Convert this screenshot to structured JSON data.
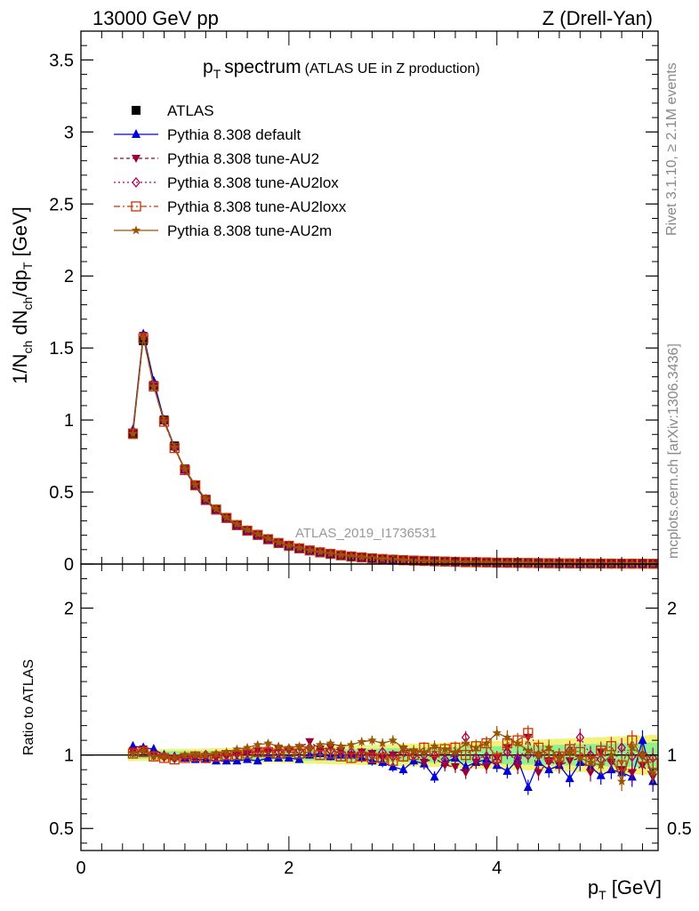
{
  "header": {
    "left": "13000 GeV pp",
    "right": "Z (Drell-Yan)"
  },
  "side_labels": {
    "rivet": "Rivet 3.1.10, ≥ 2.1M events",
    "mcplots": "mcplots.cern.ch [arXiv:1306.3436]"
  },
  "chart_data": {
    "type": "line",
    "title_main": "p",
    "title_sub": "T",
    "title_word": "spectrum",
    "title_note": "(ATLAS UE in Z production)",
    "watermark": "ATLAS_2019_I1736531",
    "ylabel": {
      "a": "1/N",
      "b": "ch",
      "c": " dN",
      "d": "ch",
      "e": "/dp",
      "f": "T",
      "g": " [GeV]"
    },
    "xlabel": {
      "a": "p",
      "b": "T",
      "c": " [GeV]"
    },
    "ratio_ylabel": "Ratio to ATLAS",
    "main_yticks": [
      "0",
      "0.5",
      "1",
      "1.5",
      "2",
      "2.5",
      "3",
      "3.5"
    ],
    "ratio_yticks": [
      "0.5",
      "1",
      "2"
    ],
    "xticks": [
      "0",
      "2",
      "4"
    ],
    "xlim": [
      0,
      5.55
    ],
    "main_ylim": [
      0,
      3.7
    ],
    "ratio_ylim": [
      0.35,
      2.3
    ],
    "x": [
      0.5,
      0.6,
      0.7,
      0.8,
      0.9,
      1.0,
      1.1,
      1.2,
      1.3,
      1.4,
      1.5,
      1.6,
      1.7,
      1.8,
      1.9,
      2.0,
      2.1,
      2.2,
      2.3,
      2.4,
      2.5,
      2.6,
      2.7,
      2.8,
      2.9,
      3.0,
      3.1,
      3.2,
      3.3,
      3.4,
      3.5,
      3.6,
      3.7,
      3.8,
      3.9,
      4.0,
      4.1,
      4.2,
      4.3,
      4.4,
      4.5,
      4.6,
      4.7,
      4.8,
      4.9,
      5.0,
      5.1,
      5.2,
      5.3,
      5.4,
      5.5
    ],
    "data": [
      0.9,
      1.55,
      1.24,
      1.0,
      0.82,
      0.66,
      0.55,
      0.45,
      0.38,
      0.32,
      0.27,
      0.23,
      0.2,
      0.17,
      0.145,
      0.125,
      0.108,
      0.093,
      0.081,
      0.07,
      0.061,
      0.053,
      0.046,
      0.04,
      0.035,
      0.031,
      0.027,
      0.024,
      0.021,
      0.019,
      0.017,
      0.015,
      0.013,
      0.012,
      0.011,
      0.0095,
      0.0085,
      0.0076,
      0.0068,
      0.0061,
      0.0055,
      0.0049,
      0.0044,
      0.004,
      0.0036,
      0.0032,
      0.0029,
      0.0026,
      0.0023,
      0.0021,
      0.0019
    ],
    "series": [
      {
        "name": "ATLAS",
        "color": "#000000",
        "marker": "square"
      },
      {
        "name": "Pythia 8.308 default",
        "color": "#0000dd",
        "marker": "triangle-up",
        "ratio": [
          1.06,
          1.05,
          1.04,
          1.0,
          0.99,
          0.98,
          0.97,
          0.97,
          0.96,
          0.96,
          0.96,
          0.97,
          0.96,
          0.98,
          0.98,
          0.98,
          0.97,
          1.0,
          1.01,
          0.99,
          1.0,
          1.0,
          0.98,
          0.96,
          0.95,
          0.92,
          0.9,
          0.96,
          0.94,
          0.85,
          0.95,
          0.98,
          0.92,
          0.95,
          0.97,
          0.93,
          0.89,
          0.97,
          0.78,
          0.95,
          0.9,
          0.93,
          0.84,
          0.95,
          0.92,
          0.86,
          0.9,
          0.88,
          0.85,
          1.1,
          0.82
        ]
      },
      {
        "name": "Pythia 8.308 tune-AU2",
        "color": "#990033",
        "marker": "triangle-down",
        "ratio": [
          1.03,
          1.04,
          1.0,
          0.98,
          0.97,
          0.98,
          0.99,
          0.98,
          0.98,
          0.99,
          1.0,
          1.01,
          1.03,
          1.02,
          1.04,
          1.03,
          1.05,
          1.09,
          1.04,
          1.05,
          1.03,
          1.0,
          1.02,
          1.01,
          0.98,
          1.0,
          1.04,
          1.02,
          0.95,
          0.98,
          0.93,
          0.92,
          0.88,
          0.95,
          0.92,
          0.98,
          1.05,
          0.92,
          1.12,
          0.88,
          0.96,
          0.93,
          0.96,
          0.98,
          0.88,
          1.02,
          0.95,
          0.9,
          0.88,
          0.93,
          0.85
        ]
      },
      {
        "name": "Pythia 8.308 tune-AU2lox",
        "color": "#aa0055",
        "marker": "diamond",
        "ratio": [
          1.02,
          1.03,
          1.0,
          0.99,
          0.98,
          0.99,
          0.99,
          1.0,
          1.0,
          1.0,
          1.01,
          1.02,
          1.02,
          1.03,
          1.02,
          1.04,
          1.03,
          1.05,
          1.04,
          1.03,
          1.02,
          1.02,
          1.01,
          1.0,
          1.02,
          0.99,
          1.02,
          1.0,
          1.0,
          1.0,
          0.97,
          1.0,
          1.12,
          0.98,
          0.99,
          0.96,
          1.02,
          0.98,
          1.0,
          1.0,
          0.96,
          0.99,
          1.03,
          1.12,
          1.0,
          0.97,
          0.96,
          1.05,
          0.99,
          1.0,
          0.98
        ]
      },
      {
        "name": "Pythia 8.308 tune-AU2loxx",
        "color": "#cc3300",
        "marker": "square-open",
        "ratio": [
          1.01,
          1.02,
          0.99,
          0.98,
          0.97,
          0.98,
          0.99,
          0.98,
          0.99,
          1.0,
          1.0,
          1.01,
          1.02,
          1.02,
          1.01,
          1.02,
          1.01,
          1.02,
          1.0,
          1.01,
          0.99,
          0.98,
          0.99,
          0.98,
          0.98,
          0.96,
          0.99,
          1.0,
          1.05,
          1.02,
          1.04,
          1.05,
          1.0,
          1.06,
          1.08,
          0.98,
          1.08,
          1.1,
          1.15,
          1.05,
          1.0,
          0.99,
          1.04,
          1.02,
          0.96,
          1.03,
          1.06,
          0.93,
          1.1,
          0.98,
          0.94
        ]
      },
      {
        "name": "Pythia 8.308 tune-AU2m",
        "color": "#995500",
        "marker": "star",
        "ratio": [
          1.01,
          1.03,
          0.99,
          0.99,
          0.98,
          1.0,
          1.0,
          1.0,
          1.01,
          1.02,
          1.04,
          1.05,
          1.07,
          1.08,
          1.06,
          1.05,
          1.06,
          1.05,
          1.07,
          1.08,
          1.06,
          1.07,
          1.09,
          1.1,
          1.08,
          1.1,
          1.05,
          1.03,
          1.02,
          1.06,
          1.04,
          1.02,
          1.08,
          1.05,
          1.08,
          1.15,
          1.12,
          1.08,
          1.03,
          1.0,
          1.05,
          0.98,
          1.02,
          0.98,
          0.95,
          0.93,
          1.0,
          0.82,
          1.05,
          1.0,
          0.88
        ]
      }
    ],
    "ratio_band_colors": {
      "inner": "#8ff08f",
      "outer": "#f2f27a"
    }
  }
}
